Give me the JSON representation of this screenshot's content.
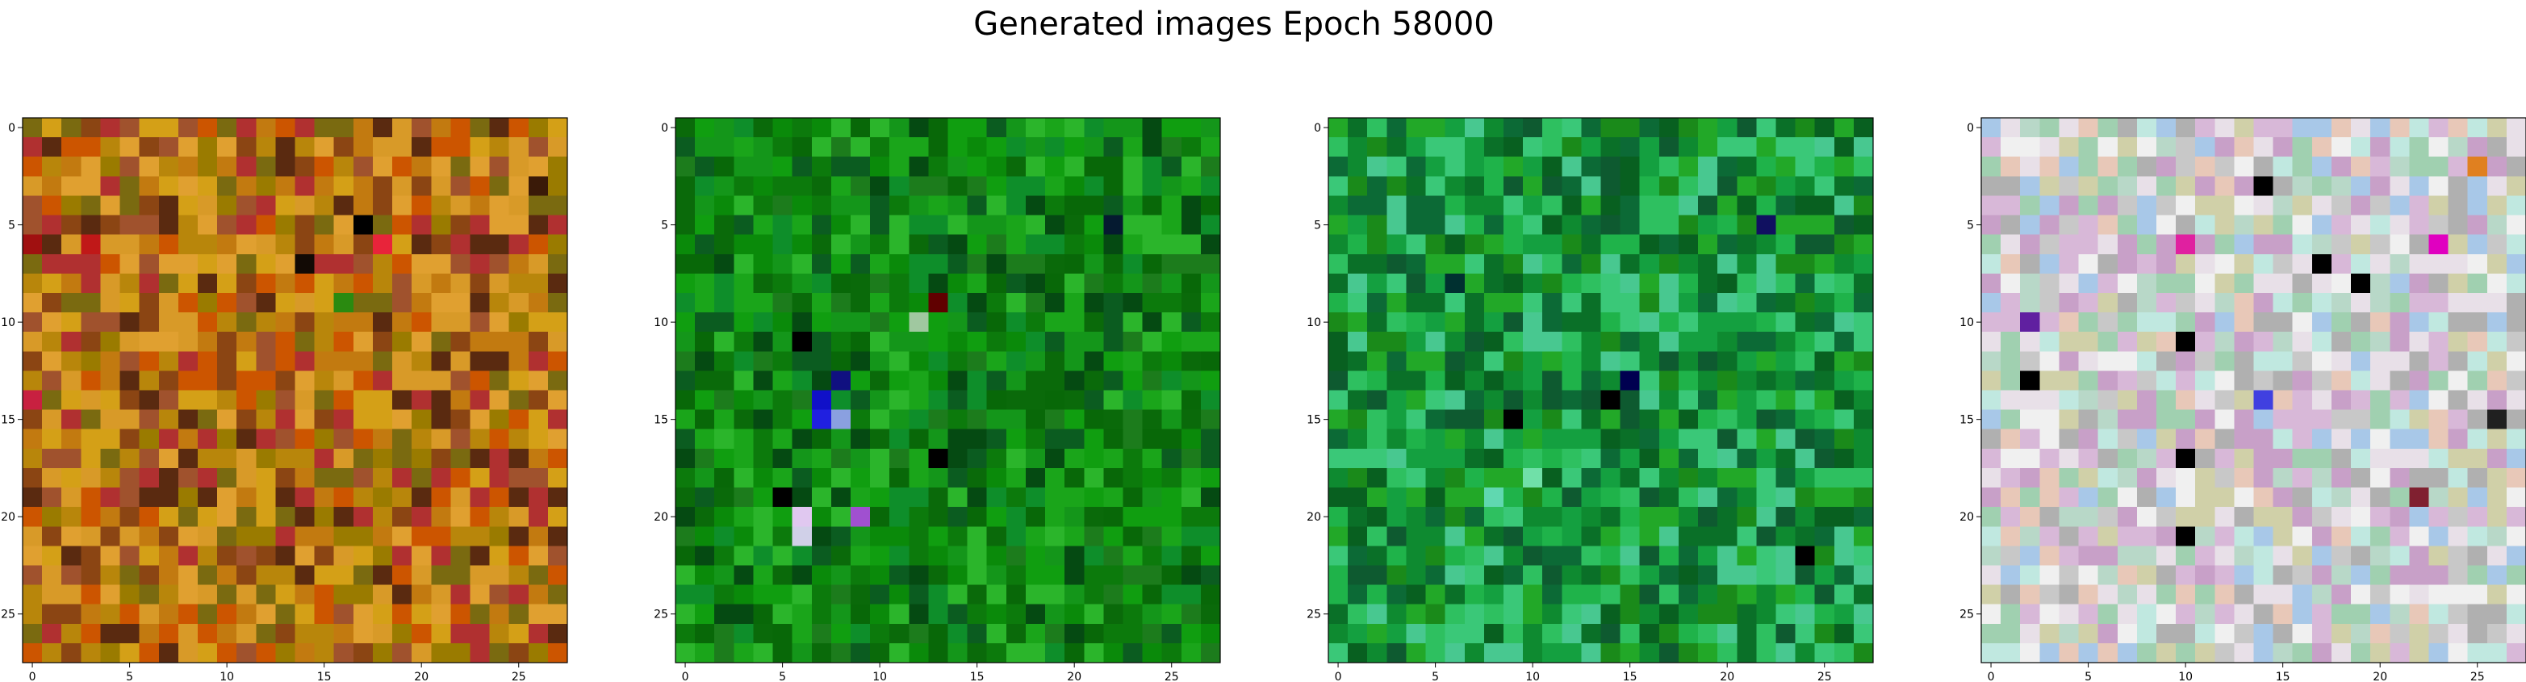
{
  "figure": {
    "title": "Generated images Epoch 58000"
  },
  "chart_data": [
    {
      "type": "heatmap",
      "title": "",
      "xlabel": "",
      "ylabel": "",
      "rows": 28,
      "cols": 28,
      "xticks": [
        0,
        5,
        10,
        15,
        20,
        25
      ],
      "yticks": [
        0,
        5,
        10,
        15,
        20,
        25
      ],
      "xtick_labels": [
        "0",
        "5",
        "10",
        "15",
        "20",
        "25"
      ],
      "ytick_labels": [
        "0",
        "5",
        "10",
        "15",
        "20",
        "25"
      ],
      "palette": [
        "#c27a10",
        "#b8860b",
        "#d4a017",
        "#a0522d",
        "#8b4513",
        "#cc5500",
        "#9a7b00",
        "#e0a030",
        "#7a6a10",
        "#b03030",
        "#5a2a10",
        "#d89a28"
      ],
      "highlights": [
        {
          "row": 6,
          "col": 0,
          "color": "#a01010"
        },
        {
          "row": 6,
          "col": 3,
          "color": "#c01818"
        },
        {
          "row": 5,
          "col": 17,
          "color": "#000000"
        },
        {
          "row": 7,
          "col": 14,
          "color": "#120a05"
        },
        {
          "row": 6,
          "col": 18,
          "color": "#e8243a"
        },
        {
          "row": 14,
          "col": 0,
          "color": "#c82040"
        },
        {
          "row": 9,
          "col": 16,
          "color": "#2a8a10"
        },
        {
          "row": 3,
          "col": 26,
          "color": "#3a1a08"
        }
      ]
    },
    {
      "type": "heatmap",
      "title": "",
      "xlabel": "",
      "ylabel": "",
      "rows": 28,
      "cols": 28,
      "xticks": [
        0,
        5,
        10,
        15,
        20,
        25
      ],
      "yticks": [
        0,
        5,
        10,
        15,
        20,
        25
      ],
      "xtick_labels": [
        "0",
        "5",
        "10",
        "15",
        "20",
        "25"
      ],
      "ytick_labels": [
        "0",
        "5",
        "10",
        "15",
        "20",
        "25"
      ],
      "palette": [
        "#0a8a0a",
        "#0c7a0c",
        "#109e10",
        "#0a6a0a",
        "#1aa51a",
        "#086808",
        "#14961a",
        "#0b5c20",
        "#2bb52b",
        "#054a12",
        "#0e8e2a",
        "#1c7c1c"
      ],
      "highlights": [
        {
          "row": 14,
          "col": 7,
          "color": "#1010c8"
        },
        {
          "row": 15,
          "col": 7,
          "color": "#2020e0"
        },
        {
          "row": 15,
          "col": 8,
          "color": "#8aa0e0"
        },
        {
          "row": 13,
          "col": 8,
          "color": "#101080"
        },
        {
          "row": 20,
          "col": 6,
          "color": "#e0c8f0"
        },
        {
          "row": 21,
          "col": 6,
          "color": "#d0d0e8"
        },
        {
          "row": 20,
          "col": 9,
          "color": "#a050d0"
        },
        {
          "row": 9,
          "col": 13,
          "color": "#600000"
        },
        {
          "row": 10,
          "col": 12,
          "color": "#a0c8a0"
        },
        {
          "row": 5,
          "col": 22,
          "color": "#051a30"
        },
        {
          "row": 11,
          "col": 6,
          "color": "#000000"
        },
        {
          "row": 17,
          "col": 13,
          "color": "#000000"
        },
        {
          "row": 19,
          "col": 5,
          "color": "#000000"
        }
      ]
    },
    {
      "type": "heatmap",
      "title": "",
      "xlabel": "",
      "ylabel": "",
      "rows": 28,
      "cols": 28,
      "xticks": [
        0,
        5,
        10,
        15,
        20,
        25
      ],
      "yticks": [
        0,
        5,
        10,
        15,
        20,
        25
      ],
      "xtick_labels": [
        "0",
        "5",
        "10",
        "15",
        "20",
        "25"
      ],
      "ytick_labels": [
        "0",
        "5",
        "10",
        "15",
        "20",
        "25"
      ],
      "palette": [
        "#14a040",
        "#0e8a30",
        "#1fb34a",
        "#0a7028",
        "#2ec060",
        "#0c6a36",
        "#3ac878",
        "#1a8a1a",
        "#0e5a30",
        "#22a828",
        "#48c890",
        "#086020"
      ],
      "highlights": [
        {
          "row": 13,
          "col": 15,
          "color": "#000050"
        },
        {
          "row": 14,
          "col": 14,
          "color": "#000000"
        },
        {
          "row": 15,
          "col": 9,
          "color": "#000000"
        },
        {
          "row": 5,
          "col": 22,
          "color": "#101060"
        },
        {
          "row": 8,
          "col": 6,
          "color": "#003030"
        },
        {
          "row": 22,
          "col": 24,
          "color": "#000000"
        },
        {
          "row": 18,
          "col": 10,
          "color": "#70e0a8"
        },
        {
          "row": 19,
          "col": 8,
          "color": "#60d8b0"
        }
      ]
    },
    {
      "type": "heatmap",
      "title": "",
      "xlabel": "",
      "ylabel": "",
      "rows": 28,
      "cols": 28,
      "xticks": [
        0,
        5,
        10,
        15,
        20,
        25
      ],
      "yticks": [
        0,
        5,
        10,
        15,
        20,
        25
      ],
      "xtick_labels": [
        "0",
        "5",
        "10",
        "15",
        "20",
        "25"
      ],
      "ytick_labels": [
        "0",
        "5",
        "10",
        "15",
        "20",
        "25"
      ],
      "palette": [
        "#c8c8c8",
        "#d8b8d8",
        "#b8d8c8",
        "#e8e0e8",
        "#a8c8e8",
        "#d0d0a8",
        "#e8c8b8",
        "#c0e8e0",
        "#f0f0f0",
        "#b0b0b0",
        "#c8a0c8",
        "#a0d0b0"
      ],
      "highlights": [
        {
          "row": 3,
          "col": 14,
          "color": "#000000"
        },
        {
          "row": 6,
          "col": 10,
          "color": "#e020a0"
        },
        {
          "row": 7,
          "col": 17,
          "color": "#000000"
        },
        {
          "row": 8,
          "col": 19,
          "color": "#000000"
        },
        {
          "row": 11,
          "col": 10,
          "color": "#000000"
        },
        {
          "row": 13,
          "col": 2,
          "color": "#000000"
        },
        {
          "row": 14,
          "col": 14,
          "color": "#4040e0"
        },
        {
          "row": 17,
          "col": 10,
          "color": "#000000"
        },
        {
          "row": 21,
          "col": 10,
          "color": "#000000"
        },
        {
          "row": 6,
          "col": 23,
          "color": "#e000c0"
        },
        {
          "row": 15,
          "col": 26,
          "color": "#202020"
        },
        {
          "row": 19,
          "col": 22,
          "color": "#802030"
        },
        {
          "row": 10,
          "col": 2,
          "color": "#6020a0"
        },
        {
          "row": 2,
          "col": 25,
          "color": "#e08020"
        }
      ]
    }
  ]
}
